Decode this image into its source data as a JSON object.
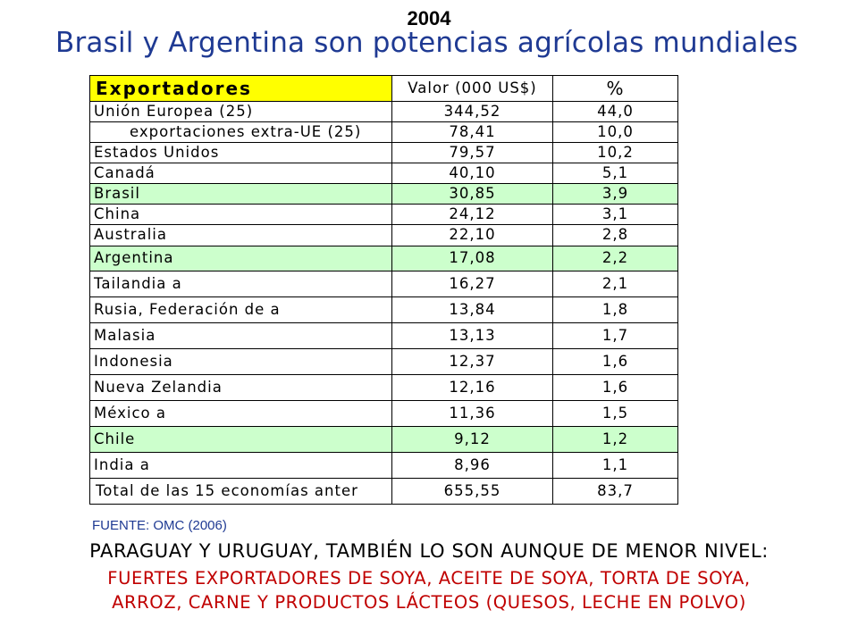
{
  "year": "2004",
  "title": "Brasil y Argentina son potencias agrícolas mundiales",
  "table": {
    "headers": [
      "Exportadores",
      "Valor (000 US$)",
      "%"
    ],
    "rows": [
      {
        "name": "Unión Europea (25)",
        "value": "344,52",
        "pct": "44,0",
        "indent": "normal",
        "highlight": false
      },
      {
        "name": "exportaciones extra-UE (25)",
        "value": "78,41",
        "pct": "10,0",
        "indent": "sub",
        "highlight": false
      },
      {
        "name": "Estados Unidos",
        "value": "79,57",
        "pct": "10,2",
        "indent": "normal",
        "highlight": false
      },
      {
        "name": "Canadá",
        "value": "40,10",
        "pct": "5,1",
        "indent": "normal",
        "highlight": false
      },
      {
        "name": "Brasil",
        "value": "30,85",
        "pct": "3,9",
        "indent": "normal",
        "highlight": true
      },
      {
        "name": "China",
        "value": "24,12",
        "pct": "3,1",
        "indent": "normal",
        "highlight": false
      },
      {
        "name": "Australia",
        "value": "22,10",
        "pct": "2,8",
        "indent": "normal",
        "highlight": false
      },
      {
        "name": "Argentina",
        "value": "17,08",
        "pct": "2,2",
        "indent": "normal",
        "highlight": true
      },
      {
        "name": "Tailandia  a",
        "value": "16,27",
        "pct": "2,1",
        "indent": "normal",
        "highlight": false
      },
      {
        "name": "Rusia, Federación de  a",
        "value": "13,84",
        "pct": "1,8",
        "indent": "normal",
        "highlight": false
      },
      {
        "name": "Malasia",
        "value": "13,13",
        "pct": "1,7",
        "indent": "normal",
        "highlight": false
      },
      {
        "name": "Indonesia",
        "value": "12,37",
        "pct": "1,6",
        "indent": "normal",
        "highlight": false
      },
      {
        "name": "Nueva Zelandia",
        "value": "12,16",
        "pct": "1,6",
        "indent": "normal",
        "highlight": false
      },
      {
        "name": "México  a",
        "value": "11,36",
        "pct": "1,5",
        "indent": "normal",
        "highlight": false
      },
      {
        "name": "Chile",
        "value": "9,12",
        "pct": "1,2",
        "indent": "normal",
        "highlight": true
      },
      {
        "name": "India  a",
        "value": "8,96",
        "pct": "1,1",
        "indent": "normal",
        "highlight": false
      },
      {
        "name": "Total de las 15 economías anter",
        "value": "655,55",
        "pct": "83,7",
        "indent": "total",
        "highlight": false
      }
    ]
  },
  "source": "FUENTE: OMC (2006)",
  "footer": {
    "line1": "PARAGUAY Y URUGUAY, TAMBIÉN LO SON AUNQUE DE MENOR NIVEL:",
    "line2": "FUERTES EXPORTADORES DE SOYA, ACEITE DE SOYA, TORTA DE SOYA,",
    "line3": "ARROZ, CARNE Y PRODUCTOS LÁCTEOS (QUESOS, LECHE EN POLVO)"
  },
  "colors": {
    "title": "#1f3a93",
    "header_highlight": "#ffff00",
    "row_highlight": "#ccffcc",
    "footer_red": "#c00000"
  }
}
